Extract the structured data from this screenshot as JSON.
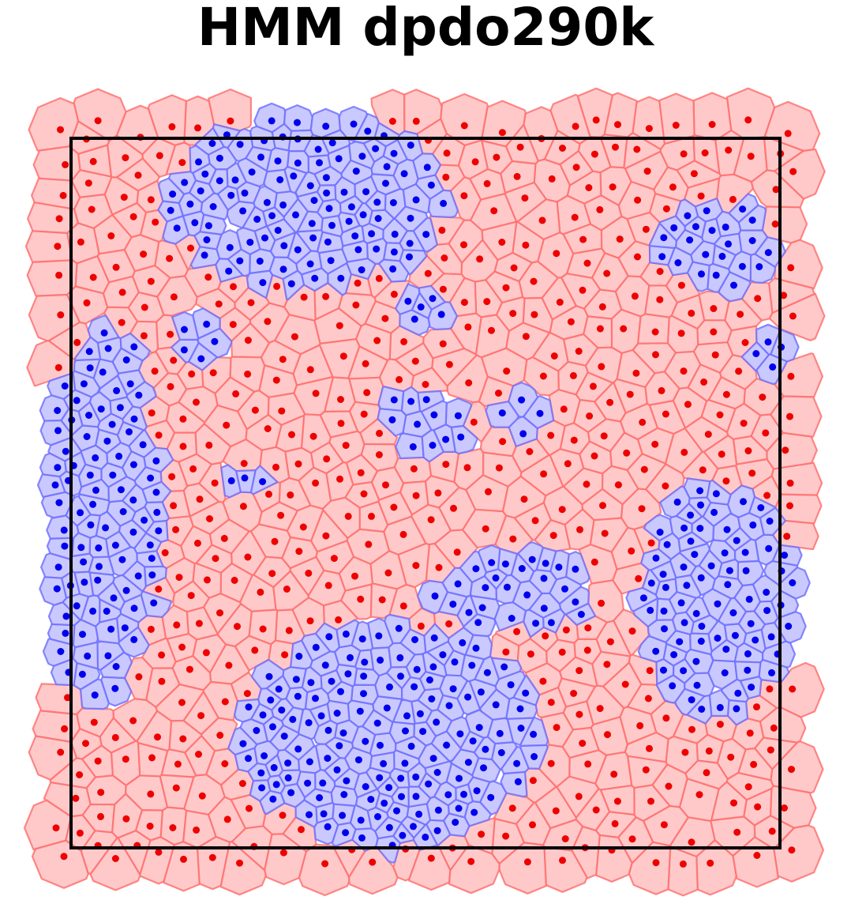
{
  "title": "HMM dpdo290k",
  "colors": {
    "phase_a_fill": "#ffc9c9",
    "phase_a_edge": "#ff6b6b",
    "phase_a_point": "#ee0000",
    "phase_b_fill": "#c9c9ff",
    "phase_b_edge": "#6b6bff",
    "phase_b_point": "#0000ee",
    "frame": "#000000",
    "background": "#ffffff"
  },
  "legend": "none",
  "grid": false,
  "axes_visible": false
}
